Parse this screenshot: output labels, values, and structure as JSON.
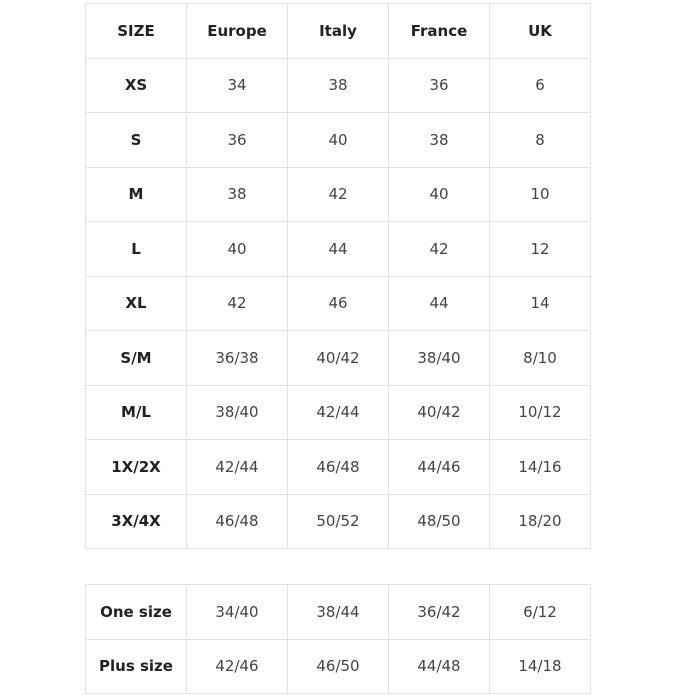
{
  "size_chart": {
    "headers": [
      "SIZE",
      "Europe",
      "Italy",
      "France",
      "UK"
    ],
    "rows": [
      [
        "XS",
        "34",
        "38",
        "36",
        "6"
      ],
      [
        "S",
        "36",
        "40",
        "38",
        "8"
      ],
      [
        "M",
        "38",
        "42",
        "40",
        "10"
      ],
      [
        "L",
        "40",
        "44",
        "42",
        "12"
      ],
      [
        "XL",
        "42",
        "46",
        "44",
        "14"
      ],
      [
        "S/M",
        "36/38",
        "40/42",
        "38/40",
        "8/10"
      ],
      [
        "M/L",
        "38/40",
        "42/44",
        "40/42",
        "10/12"
      ],
      [
        "1X/2X",
        "42/44",
        "46/48",
        "44/46",
        "14/16"
      ],
      [
        "3X/4X",
        "46/48",
        "50/52",
        "48/50",
        "18/20"
      ]
    ]
  },
  "special_sizes": {
    "rows": [
      [
        "One size",
        "34/40",
        "38/44",
        "36/42",
        "6/12"
      ],
      [
        "Plus size",
        "42/46",
        "46/50",
        "44/48",
        "14/18"
      ]
    ]
  }
}
